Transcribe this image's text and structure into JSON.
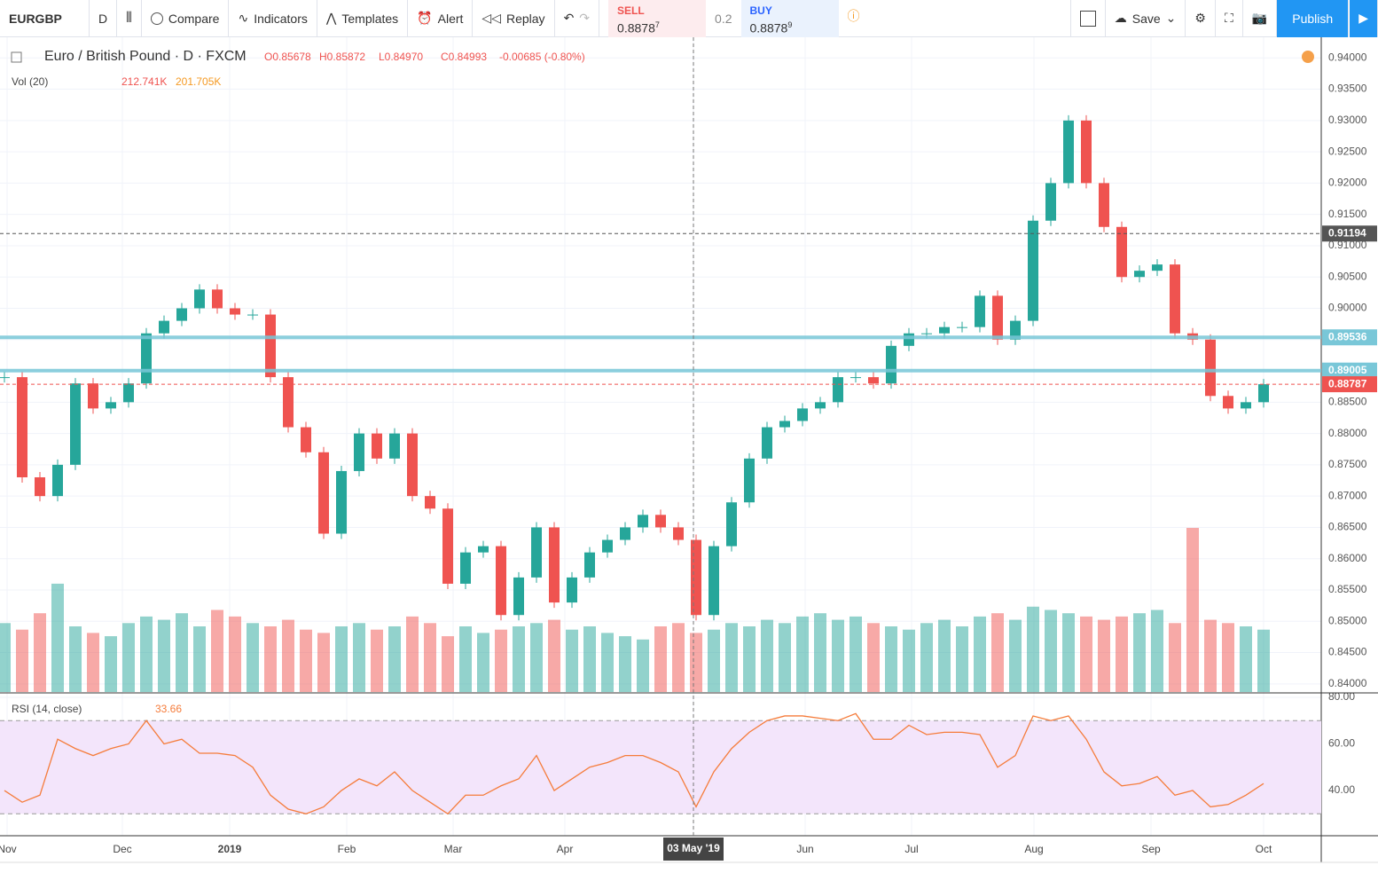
{
  "toolbar": {
    "symbol": "EURGBP",
    "interval": "D",
    "buttons": [
      "Compare",
      "Indicators",
      "Templates",
      "Alert",
      "Replay"
    ],
    "sell": {
      "label": "SELL",
      "price": "0.8878",
      "pip": "7"
    },
    "spread": "0.2",
    "buy": {
      "label": "BUY",
      "price": "0.8878",
      "pip": "9"
    },
    "save": "Save",
    "publish": "Publish"
  },
  "legend": {
    "title": "Euro / British Pound · D · FXCM",
    "ohlc": [
      "O0.85678",
      "H0.85872",
      "L0.84970",
      "C0.84993",
      "-0.00685 (-0.80%)"
    ],
    "volume": {
      "label": "Vol (20)",
      "values": [
        "212.741K",
        "201.705K"
      ]
    },
    "rsi": {
      "label": "RSI (14, close)",
      "value": "33.66"
    }
  },
  "time_axis": {
    "labels": [
      "Nov",
      "Dec",
      "2019",
      "Feb",
      "Mar",
      "Apr",
      "Jun",
      "Jul",
      "Aug",
      "Sep",
      "Oct"
    ],
    "crosshair": "03 May '19"
  },
  "chart_data": [
    {
      "type": "candlestick",
      "up_color": "#26a69a",
      "down_color": "#ef5350",
      "values": [
        0.889,
        0.873,
        0.87,
        0.875,
        0.888,
        0.884,
        0.885,
        0.888,
        0.896,
        0.898,
        0.9,
        0.903,
        0.9,
        0.899,
        0.899,
        0.889,
        0.881,
        0.877,
        0.864,
        0.874,
        0.88,
        0.876,
        0.88,
        0.87,
        0.868,
        0.856,
        0.861,
        0.862,
        0.851,
        0.857,
        0.865,
        0.853,
        0.857,
        0.861,
        0.863,
        0.865,
        0.867,
        0.865,
        0.863,
        0.851,
        0.862,
        0.869,
        0.876,
        0.881,
        0.882,
        0.884,
        0.885,
        0.889,
        0.889,
        0.888,
        0.894,
        0.896,
        0.896,
        0.897,
        0.897,
        0.902,
        0.895,
        0.898,
        0.914,
        0.92,
        0.93,
        0.92,
        0.913,
        0.905,
        0.906,
        0.907,
        0.896,
        0.895,
        0.886,
        0.884,
        0.885,
        0.88787
      ],
      "volume": [
        210,
        190,
        240,
        330,
        200,
        180,
        170,
        210,
        230,
        220,
        240,
        200,
        250,
        230,
        210,
        200,
        220,
        190,
        180,
        200,
        210,
        190,
        200,
        230,
        210,
        170,
        200,
        180,
        190,
        200,
        210,
        220,
        190,
        200,
        180,
        170,
        160,
        200,
        210,
        180,
        190,
        210,
        200,
        220,
        210,
        230,
        240,
        220,
        230,
        210,
        200,
        190,
        210,
        220,
        200,
        230,
        240,
        220,
        260,
        250,
        240,
        230,
        220,
        230,
        240,
        250,
        210,
        500,
        220,
        210,
        200,
        190
      ],
      "ylim": [
        0.8387,
        0.9433
      ],
      "yticks": [
        {
          "value": 0.94,
          "label": "0.94000"
        },
        {
          "value": 0.935,
          "label": "0.93500"
        },
        {
          "value": 0.93,
          "label": "0.93000"
        },
        {
          "value": 0.925,
          "label": "0.92500"
        },
        {
          "value": 0.92,
          "label": "0.92000"
        },
        {
          "value": 0.915,
          "label": "0.91500"
        },
        {
          "value": 0.91,
          "label": "0.91000"
        },
        {
          "value": 0.905,
          "label": "0.90500"
        },
        {
          "value": 0.9,
          "label": "0.90000"
        },
        {
          "value": 0.895,
          "label": "0.89500"
        },
        {
          "value": 0.89,
          "label": "0.89000"
        },
        {
          "value": 0.885,
          "label": "0.88500"
        },
        {
          "value": 0.88,
          "label": "0.88000"
        },
        {
          "value": 0.875,
          "label": "0.87500"
        },
        {
          "value": 0.87,
          "label": "0.87000"
        },
        {
          "value": 0.865,
          "label": "0.86500"
        },
        {
          "value": 0.86,
          "label": "0.86000"
        },
        {
          "value": 0.855,
          "label": "0.85500"
        },
        {
          "value": 0.85,
          "label": "0.85000"
        },
        {
          "value": 0.845,
          "label": "0.84500"
        },
        {
          "value": 0.84,
          "label": "0.84000"
        }
      ],
      "levels": [
        {
          "value": 0.91194,
          "color": "#555555",
          "dashed": true
        },
        {
          "value": 0.89536,
          "color": "#79c7d8",
          "dashed": false
        },
        {
          "value": 0.89005,
          "color": "#79c7d8",
          "dashed": false
        },
        {
          "value": 0.88787,
          "color": "#ef5350",
          "dashed": true
        }
      ],
      "grid": true
    },
    {
      "type": "line",
      "color": "#f57c3b",
      "values": [
        40,
        35,
        38,
        62,
        58,
        55,
        58,
        60,
        70,
        60,
        62,
        56,
        56,
        55,
        50,
        38,
        32,
        30,
        33,
        40,
        45,
        42,
        48,
        40,
        35,
        30,
        38,
        38,
        42,
        45,
        55,
        40,
        45,
        50,
        52,
        55,
        55,
        52,
        48,
        33,
        48,
        58,
        65,
        70,
        72,
        72,
        71,
        70,
        73,
        62,
        62,
        68,
        64,
        65,
        65,
        64,
        50,
        55,
        72,
        70,
        72,
        62,
        48,
        42,
        43,
        46,
        38,
        40,
        33,
        34,
        38,
        43
      ],
      "ylim": [
        20.6,
        81.5
      ],
      "yticks": [
        {
          "value": 80,
          "label": "80.00"
        },
        {
          "value": 60,
          "label": "60.00"
        },
        {
          "value": 40,
          "label": "40.00"
        }
      ],
      "band": [
        30,
        70
      ],
      "grid": true
    }
  ]
}
